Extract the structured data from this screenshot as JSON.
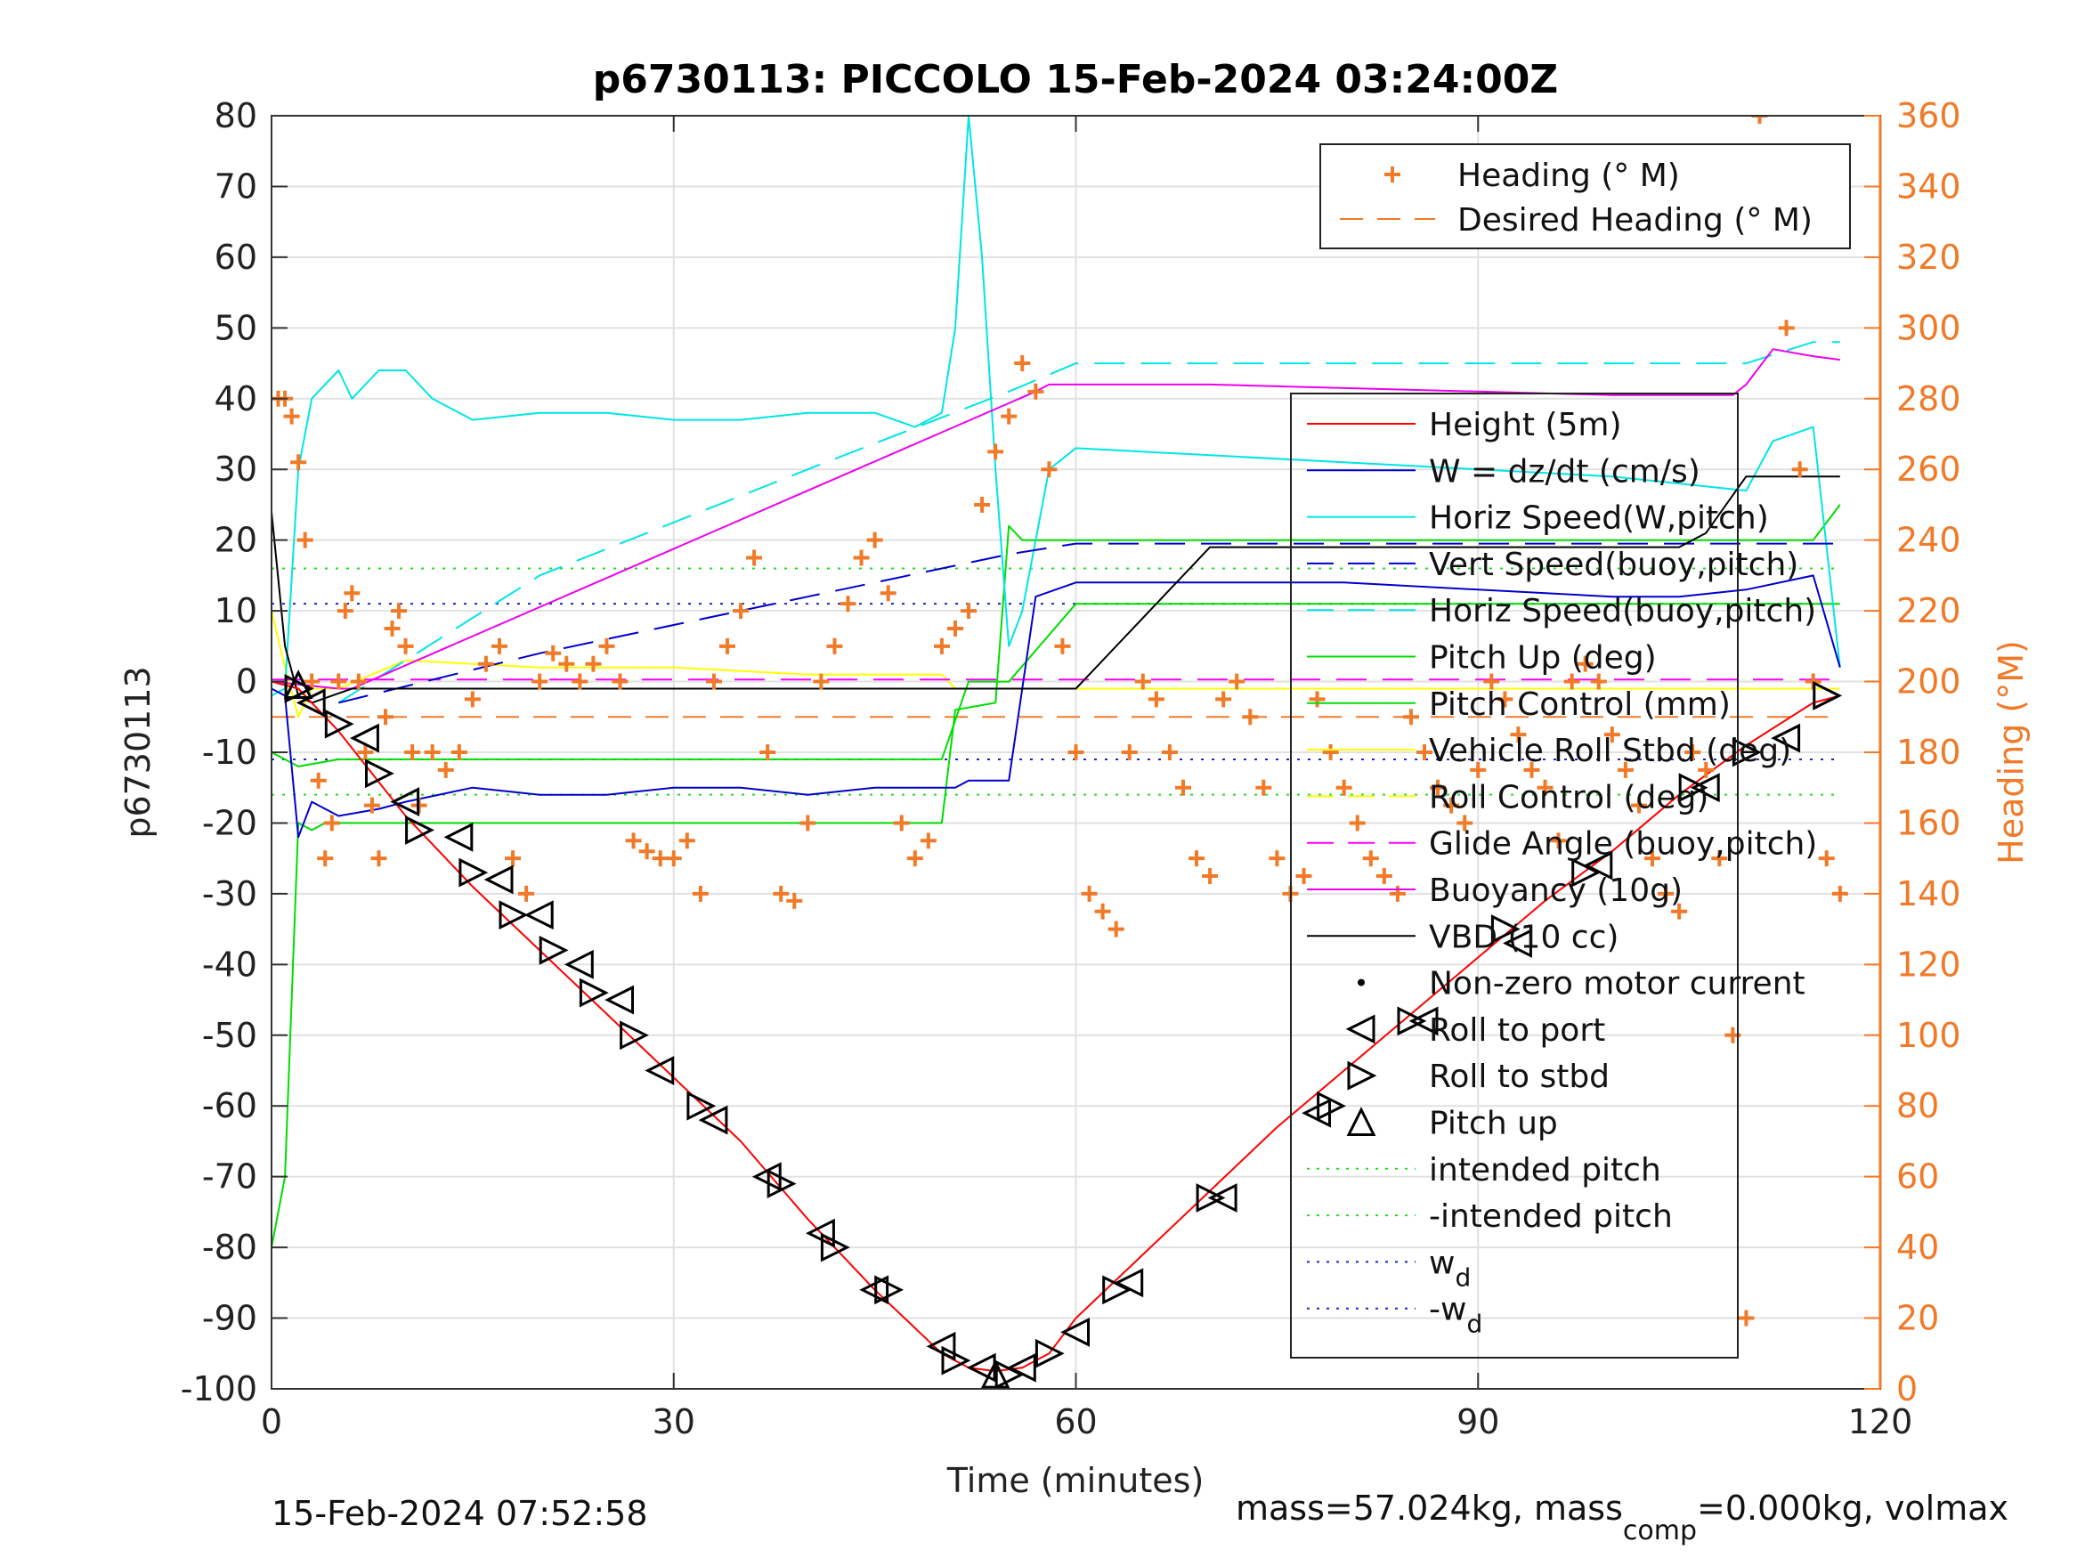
{
  "title": "p6730113: PICCOLO 15-Feb-2024 03:24:00Z",
  "footer": {
    "left": "15-Feb-2024 07:52:58",
    "right_prefix": "mass=57.024kg, mass",
    "right_sub": "comp",
    "right_suffix": "=0.000kg, volmax"
  },
  "colors": {
    "height": "#ff0000",
    "w": "#0000cc",
    "horiz_speed": "#00e5e5",
    "pitch": "#00dd00",
    "roll": "#ffff00",
    "glide": "#ff00ff",
    "buoyancy": "#ee00ee",
    "vbd": "#000000",
    "heading": "#f07a28",
    "intended_pitch": "#22dd22",
    "wd": "#2222cc"
  },
  "chart_data": {
    "type": "line",
    "title": "p6730113: PICCOLO 15-Feb-2024 03:24:00Z",
    "xlabel": "Time (minutes)",
    "ylabel": "p6730113",
    "y2label": "Heading (°M)",
    "xlim": [
      0,
      120
    ],
    "ylim": [
      -100,
      80
    ],
    "y2lim": [
      0,
      360
    ],
    "grid": true,
    "xticks": [
      "0",
      "30",
      "60",
      "90",
      "120"
    ],
    "yticks": [
      "80",
      "70",
      "60",
      "50",
      "40",
      "30",
      "20",
      "10",
      "0",
      "-10",
      "-20",
      "-30",
      "-40",
      "-50",
      "-60",
      "-70",
      "-80",
      "-90",
      "-100"
    ],
    "y2ticks": [
      "360",
      "340",
      "320",
      "300",
      "280",
      "260",
      "240",
      "220",
      "200",
      "180",
      "160",
      "140",
      "120",
      "100",
      "80",
      "60",
      "40",
      "20",
      "0"
    ],
    "legend_heading": {
      "placement": "top-right",
      "entries": [
        "Heading (° M)",
        "Desired Heading (° M)"
      ]
    },
    "legend_main": {
      "placement": "right",
      "entries": [
        {
          "label": "Height (5m)",
          "style": "line",
          "color": "#ff0000"
        },
        {
          "label": "W = dz/dt (cm/s)",
          "style": "line",
          "color": "#0000cc"
        },
        {
          "label": "Horiz Speed(W,pitch)",
          "style": "line",
          "color": "#00e5e5"
        },
        {
          "label": "Vert Speed(buoy,pitch)",
          "style": "dash",
          "color": "#0000cc"
        },
        {
          "label": "Horiz Speed(buoy,pitch)",
          "style": "dash",
          "color": "#00e5e5"
        },
        {
          "label": "Pitch Up (deg)",
          "style": "line",
          "color": "#00dd00"
        },
        {
          "label": "Pitch Control (mm)",
          "style": "line",
          "color": "#00dd00"
        },
        {
          "label": "Vehicle Roll Stbd (deg)",
          "style": "line",
          "color": "#ffff00"
        },
        {
          "label": "Roll Control (deg)",
          "style": "dash",
          "color": "#ffff00"
        },
        {
          "label": "Glide Angle (buoy,pitch)",
          "style": "dash",
          "color": "#ff00ff"
        },
        {
          "label": "Buoyancy (10g)",
          "style": "line",
          "color": "#ee00ee"
        },
        {
          "label": "VBD (10 cc)",
          "style": "line",
          "color": "#000000"
        },
        {
          "label": "Non-zero motor current",
          "style": "dot",
          "color": "#000000"
        },
        {
          "label": "Roll to port",
          "style": "tri-left",
          "color": "#000000"
        },
        {
          "label": "Roll to stbd",
          "style": "tri-right",
          "color": "#000000"
        },
        {
          "label": "Pitch up",
          "style": "tri-up",
          "color": "#000000"
        },
        {
          "label": "intended pitch",
          "style": "dotted",
          "color": "#22dd22"
        },
        {
          "label": "-intended pitch",
          "style": "dotted",
          "color": "#22dd22"
        },
        {
          "label": "w",
          "sub": "d",
          "style": "dotted",
          "color": "#2222cc"
        },
        {
          "label": "-w",
          "sub": "d",
          "style": "dotted",
          "color": "#2222cc"
        }
      ]
    },
    "series": [
      {
        "key": "height",
        "x": [
          0,
          2,
          5,
          10,
          15,
          20,
          25,
          30,
          35,
          40,
          45,
          50,
          52,
          54,
          56,
          58,
          60,
          65,
          70,
          75,
          80,
          85,
          90,
          95,
          100,
          105,
          110,
          115,
          117
        ],
        "y": [
          0,
          -1,
          -7,
          -19,
          -29,
          -38,
          -47,
          -56,
          -65,
          -76,
          -86,
          -95,
          -97,
          -97.5,
          -97,
          -95,
          -90,
          -81,
          -72,
          -63,
          -55,
          -47,
          -39,
          -31,
          -24,
          -16,
          -9,
          -3,
          -2
        ]
      },
      {
        "key": "w",
        "x": [
          0,
          1,
          2,
          3,
          5,
          8,
          10,
          15,
          20,
          25,
          30,
          35,
          40,
          45,
          50,
          51,
          52,
          55,
          57,
          60,
          70,
          80,
          90,
          100,
          105,
          110,
          115,
          117
        ],
        "y": [
          -1,
          -2,
          -22,
          -17,
          -19,
          -18,
          -17,
          -15,
          -16,
          -16,
          -15,
          -15,
          -16,
          -15,
          -15,
          -15,
          -14,
          -14,
          12,
          14,
          14,
          14,
          13,
          12,
          12,
          13,
          15,
          2
        ]
      },
      {
        "key": "horiz_speed",
        "x": [
          0,
          1,
          2,
          3,
          4,
          5,
          6,
          8,
          10,
          12,
          15,
          20,
          25,
          30,
          35,
          40,
          45,
          48,
          50,
          51,
          52,
          53,
          54,
          55,
          56,
          58,
          60,
          70,
          80,
          90,
          100,
          105,
          110,
          112,
          115,
          117
        ],
        "y": [
          -2,
          -1,
          30,
          40,
          42,
          44,
          40,
          44,
          44,
          40,
          37,
          38,
          38,
          37,
          37,
          38,
          38,
          36,
          38,
          50,
          80,
          60,
          30,
          5,
          10,
          30,
          33,
          32,
          31,
          30,
          29,
          28,
          27,
          34,
          36,
          2
        ]
      },
      {
        "key": "vert_speed_buoy",
        "x": [
          5,
          20,
          40,
          55,
          60,
          117
        ],
        "y": [
          -3,
          4,
          12,
          18,
          19.5,
          19.5
        ]
      },
      {
        "key": "horiz_speed_buoy",
        "x": [
          5,
          20,
          40,
          55,
          60,
          110,
          115,
          117
        ],
        "y": [
          -3,
          15,
          30,
          41,
          45,
          45,
          48,
          48
        ]
      },
      {
        "key": "pitch_up",
        "x": [
          0,
          1,
          2,
          3,
          4,
          6,
          10,
          20,
          30,
          40,
          50,
          51,
          54,
          55,
          56,
          58,
          60,
          70,
          80,
          90,
          100,
          110,
          115,
          117
        ],
        "y": [
          -80,
          -70,
          -20,
          -21,
          -20,
          -20,
          -20,
          -20,
          -20,
          -20,
          -20,
          -4,
          -3,
          22,
          20,
          20,
          20,
          20,
          20,
          20,
          20,
          20,
          20,
          25
        ]
      },
      {
        "key": "pitch_control",
        "x": [
          0,
          2,
          5,
          10,
          50,
          52,
          55,
          60,
          117
        ],
        "y": [
          -10,
          -12,
          -11,
          -11,
          -11,
          0,
          0,
          11,
          11
        ]
      },
      {
        "key": "vbd",
        "x": [
          0,
          1,
          2,
          3,
          6,
          10,
          20,
          30,
          40,
          51,
          53,
          55,
          57,
          60,
          70,
          80,
          90,
          105,
          107,
          110,
          117
        ],
        "y": [
          24,
          5,
          -2,
          -3,
          -1,
          -1,
          -1,
          -1,
          -1,
          -1,
          -1,
          -1,
          -1,
          -1,
          19,
          19,
          19,
          19,
          21,
          29,
          29
        ]
      },
      {
        "key": "buoyancy",
        "x": [
          0,
          5,
          6,
          57,
          58,
          60,
          70,
          80,
          90,
          100,
          109,
          110,
          112,
          115,
          117
        ],
        "y": [
          0,
          -1,
          -1,
          41,
          42,
          42,
          42,
          41.5,
          41,
          40.5,
          40.5,
          42,
          47,
          46,
          45.5
        ]
      },
      {
        "key": "glide",
        "x": [
          0,
          117
        ],
        "y": [
          0.3,
          0.3
        ]
      },
      {
        "key": "roll",
        "x": [
          0,
          1,
          2,
          3,
          5,
          10,
          20,
          30,
          40,
          50,
          51,
          52,
          54,
          56,
          58,
          60,
          70,
          80,
          90,
          100,
          110,
          117
        ],
        "y": [
          10,
          2,
          -5,
          -1,
          -1,
          3,
          2,
          2,
          1,
          1,
          -1,
          -1,
          -1,
          -1,
          -1,
          -1,
          -1,
          -1,
          -1,
          -1,
          -1,
          -1
        ]
      }
    ],
    "heading_points": {
      "x": [
        0.5,
        1,
        1.5,
        2,
        2.5,
        3,
        3.5,
        4,
        4.5,
        5,
        5.5,
        6,
        6.5,
        7,
        7.5,
        8,
        8.5,
        9,
        9.5,
        10,
        10.5,
        11,
        12,
        13,
        14,
        15,
        16,
        17,
        18,
        19,
        20,
        21,
        22,
        23,
        24,
        25,
        26,
        27,
        28,
        29,
        30,
        31,
        32,
        33,
        34,
        35,
        36,
        37,
        38,
        39,
        40,
        41,
        42,
        43,
        44,
        45,
        46,
        47,
        48,
        49,
        50,
        51,
        52,
        53,
        54,
        55,
        56,
        57,
        58,
        59,
        60,
        61,
        62,
        63,
        64,
        65,
        66,
        67,
        68,
        69,
        70,
        71,
        72,
        73,
        74,
        75,
        76,
        77,
        78,
        79,
        80,
        81,
        82,
        83,
        84,
        85,
        86,
        87,
        88,
        89,
        90,
        91,
        92,
        93,
        94,
        95,
        96,
        97,
        98,
        99,
        100,
        101,
        102,
        103,
        104,
        105,
        106,
        107,
        108,
        109,
        110,
        111,
        112,
        113,
        114,
        115,
        116,
        117
      ],
      "y": [
        280,
        280,
        275,
        262,
        240,
        200,
        172,
        150,
        160,
        200,
        220,
        225,
        200,
        180,
        165,
        150,
        190,
        215,
        220,
        210,
        180,
        165,
        180,
        175,
        180,
        195,
        205,
        210,
        150,
        140,
        200,
        208,
        205,
        200,
        205,
        210,
        200,
        155,
        152,
        150,
        150,
        155,
        140,
        200,
        210,
        220,
        235,
        180,
        140,
        138,
        160,
        200,
        210,
        222,
        235,
        240,
        225,
        160,
        150,
        155,
        210,
        215,
        220,
        250,
        265,
        275,
        290,
        282,
        260,
        210,
        180,
        140,
        135,
        130,
        180,
        200,
        195,
        180,
        170,
        150,
        145,
        195,
        200,
        190,
        170,
        150,
        140,
        145,
        195,
        180,
        170,
        160,
        150,
        145,
        140,
        190,
        180,
        170,
        165,
        160,
        175,
        200,
        195,
        185,
        175,
        170,
        155,
        200,
        205,
        200,
        185,
        175,
        165,
        150,
        140,
        135,
        180,
        175,
        150,
        100,
        20,
        360,
        340,
        300,
        260,
        200,
        150,
        140
      ]
    },
    "desired_heading": {
      "x": [
        0,
        117
      ],
      "y": [
        190,
        190
      ]
    },
    "reference_lines": {
      "intended_pitch": 16,
      "neg_intended_pitch": -16,
      "wd": 11,
      "neg_wd": -11
    },
    "markers_port": {
      "x": [
        3,
        7,
        10,
        14,
        17,
        20,
        23,
        26,
        29,
        33,
        37,
        41,
        45,
        50,
        53,
        56,
        60,
        64,
        71,
        78,
        86,
        93,
        99,
        107,
        113
      ],
      "y": [
        -3,
        -8,
        -17,
        -22,
        -28,
        -33,
        -40,
        -45,
        -55,
        -62,
        -70,
        -78,
        -86,
        -94,
        -97,
        -97,
        -92,
        -85,
        -73,
        -61,
        -48,
        -37,
        -26,
        -15,
        -8
      ]
    },
    "markers_stbd": {
      "x": [
        2,
        5,
        8,
        11,
        15,
        18,
        21,
        24,
        27,
        32,
        38,
        42,
        46,
        51,
        55,
        58,
        63,
        70,
        79,
        85,
        92,
        98,
        106,
        110,
        116
      ],
      "y": [
        -1,
        -6,
        -13,
        -21,
        -27,
        -33,
        -38,
        -44,
        -50,
        -60,
        -71,
        -80,
        -86,
        -96,
        -98,
        -95,
        -86,
        -73,
        -60,
        -48,
        -35,
        -27,
        -15,
        -10,
        -2
      ]
    },
    "markers_pitchup": {
      "x": [
        2,
        54
      ],
      "y": [
        -0.5,
        -98
      ]
    }
  }
}
